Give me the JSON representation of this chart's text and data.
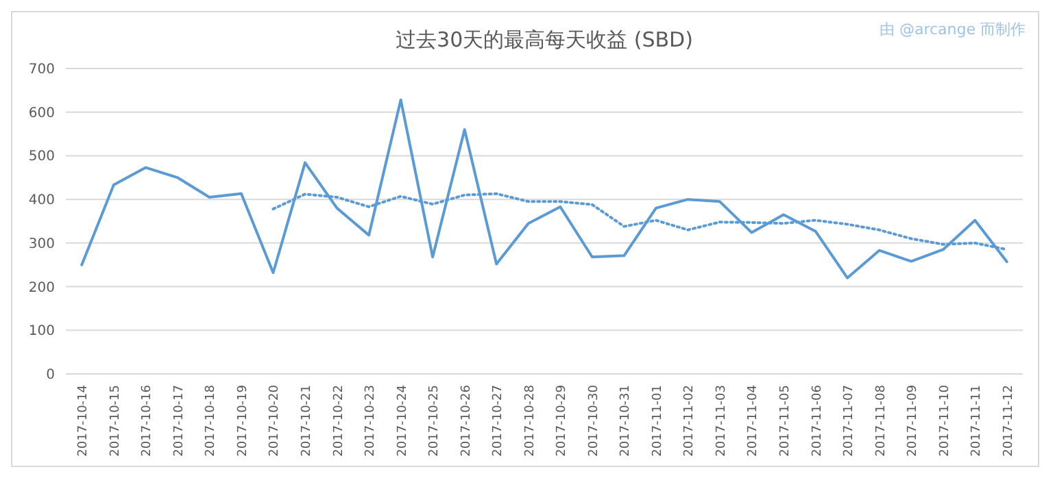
{
  "chart_data": {
    "type": "line",
    "title": "过去30天的最高每天收益 (SBD)",
    "annotations": [
      "由 @arcange 而制作"
    ],
    "categories": [
      "2017-10-14",
      "2017-10-15",
      "2017-10-16",
      "2017-10-17",
      "2017-10-18",
      "2017-10-19",
      "2017-10-20",
      "2017-10-21",
      "2017-10-22",
      "2017-10-23",
      "2017-10-24",
      "2017-10-25",
      "2017-10-26",
      "2017-10-27",
      "2017-10-28",
      "2017-10-29",
      "2017-10-30",
      "2017-10-31",
      "2017-11-01",
      "2017-11-02",
      "2017-11-03",
      "2017-11-04",
      "2017-11-05",
      "2017-11-06",
      "2017-11-07",
      "2017-11-08",
      "2017-11-09",
      "2017-11-10",
      "2017-11-11",
      "2017-11-12"
    ],
    "series": [
      {
        "color": "#5b9bd5",
        "line_style": "solid",
        "values": [
          250,
          433,
          473,
          450,
          405,
          413,
          232,
          484,
          380,
          318,
          628,
          268,
          560,
          252,
          345,
          383,
          268,
          271,
          380,
          400,
          395,
          324,
          365,
          327,
          220,
          283,
          258,
          285,
          352,
          257
        ]
      },
      {
        "color": "#5b9bd5",
        "line_style": "dotted",
        "values": [
          null,
          null,
          null,
          null,
          null,
          null,
          378,
          412,
          405,
          383,
          407,
          389,
          410,
          413,
          395,
          395,
          388,
          338,
          352,
          330,
          348,
          347,
          345,
          352,
          343,
          330,
          310,
          297,
          300,
          285
        ]
      }
    ],
    "ylim": [
      0,
      700
    ],
    "yticks": [
      0,
      100,
      200,
      300,
      400,
      500,
      600,
      700
    ],
    "grid": "y",
    "marker": "none"
  }
}
